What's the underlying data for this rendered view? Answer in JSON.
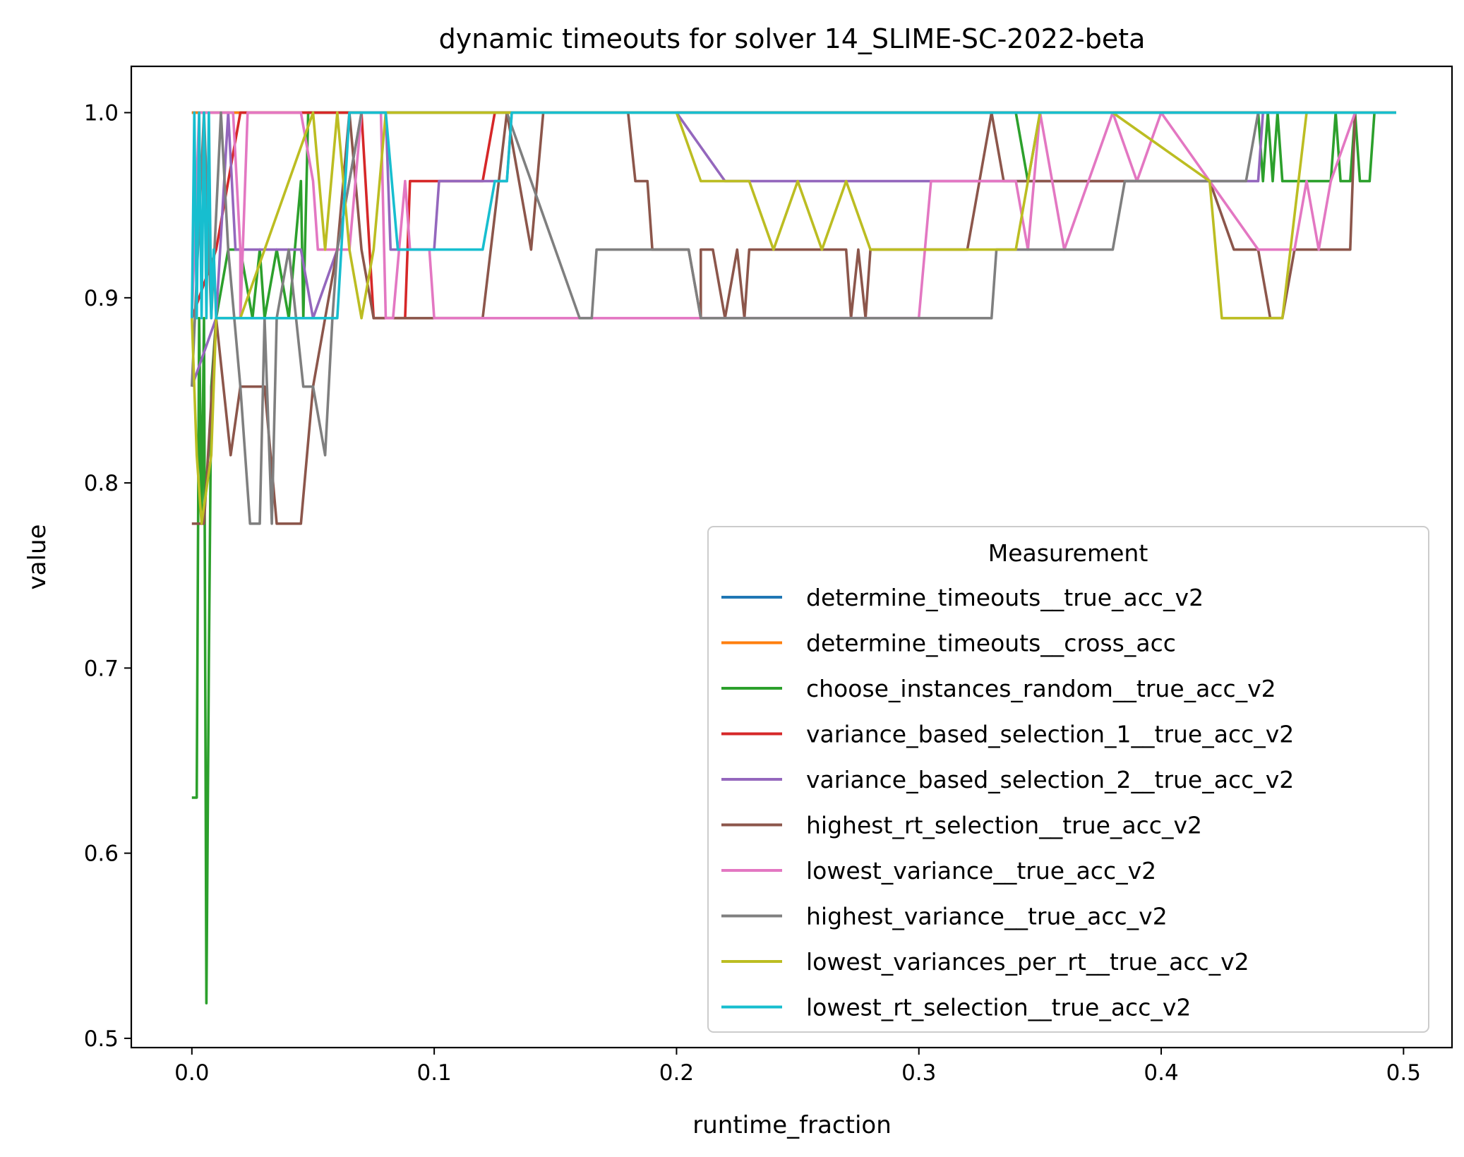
{
  "chart_data": {
    "type": "line",
    "title": "dynamic timeouts for solver 14_SLIME-SC-2022-beta",
    "xlabel": "runtime_fraction",
    "ylabel": "value",
    "xlim": [
      -0.025,
      0.52
    ],
    "ylim": [
      0.495,
      1.025
    ],
    "xticks": [
      "0.0",
      "0.1",
      "0.2",
      "0.3",
      "0.4",
      "0.5"
    ],
    "xtick_values": [
      0.0,
      0.1,
      0.2,
      0.3,
      0.4,
      0.5
    ],
    "yticks": [
      "0.5",
      "0.6",
      "0.7",
      "0.8",
      "0.9",
      "1.0"
    ],
    "ytick_values": [
      0.5,
      0.6,
      0.7,
      0.8,
      0.9,
      1.0
    ],
    "grid": false,
    "legend": {
      "title": "Measurement",
      "placement": "lower right"
    },
    "series": [
      {
        "name": "determine_timeouts__true_acc_v2",
        "color": "#1f77b4",
        "points": [
          [
            0.0,
            1.0
          ],
          [
            0.497,
            1.0
          ]
        ]
      },
      {
        "name": "determine_timeouts__cross_acc",
        "color": "#ff7f0e",
        "points": [
          [
            0.0,
            1.0
          ],
          [
            0.497,
            1.0
          ]
        ]
      },
      {
        "name": "choose_instances_random__true_acc_v2",
        "color": "#2ca02c",
        "points": [
          [
            0.0,
            0.63
          ],
          [
            0.002,
            0.63
          ],
          [
            0.003,
            0.889
          ],
          [
            0.004,
            0.778
          ],
          [
            0.005,
            0.889
          ],
          [
            0.006,
            0.519
          ],
          [
            0.007,
            0.704
          ],
          [
            0.008,
            0.852
          ],
          [
            0.01,
            0.889
          ],
          [
            0.015,
            0.926
          ],
          [
            0.02,
            0.926
          ],
          [
            0.025,
            0.889
          ],
          [
            0.028,
            0.926
          ],
          [
            0.03,
            0.889
          ],
          [
            0.035,
            0.926
          ],
          [
            0.04,
            0.889
          ],
          [
            0.045,
            0.963
          ],
          [
            0.046,
            0.889
          ],
          [
            0.048,
            1.0
          ],
          [
            0.05,
            1.0
          ],
          [
            0.3,
            1.0
          ],
          [
            0.34,
            1.0
          ],
          [
            0.345,
            0.963
          ],
          [
            0.35,
            1.0
          ],
          [
            0.44,
            1.0
          ],
          [
            0.442,
            0.963
          ],
          [
            0.444,
            1.0
          ],
          [
            0.446,
            0.963
          ],
          [
            0.448,
            1.0
          ],
          [
            0.45,
            0.963
          ],
          [
            0.47,
            0.963
          ],
          [
            0.472,
            1.0
          ],
          [
            0.474,
            0.963
          ],
          [
            0.478,
            0.963
          ],
          [
            0.48,
            1.0
          ],
          [
            0.482,
            0.963
          ],
          [
            0.486,
            0.963
          ],
          [
            0.488,
            1.0
          ],
          [
            0.497,
            1.0
          ]
        ]
      },
      {
        "name": "variance_based_selection_1__true_acc_v2",
        "color": "#d62728",
        "points": [
          [
            0.0,
            0.889
          ],
          [
            0.01,
            0.926
          ],
          [
            0.02,
            1.0
          ],
          [
            0.07,
            1.0
          ],
          [
            0.075,
            0.889
          ],
          [
            0.088,
            0.889
          ],
          [
            0.09,
            0.963
          ],
          [
            0.12,
            0.963
          ],
          [
            0.125,
            1.0
          ],
          [
            0.497,
            1.0
          ]
        ]
      },
      {
        "name": "variance_based_selection_2__true_acc_v2",
        "color": "#9467bd",
        "points": [
          [
            0.0,
            0.852
          ],
          [
            0.01,
            0.889
          ],
          [
            0.015,
            1.0
          ],
          [
            0.018,
            0.926
          ],
          [
            0.045,
            0.926
          ],
          [
            0.05,
            0.889
          ],
          [
            0.06,
            0.926
          ],
          [
            0.07,
            1.0
          ],
          [
            0.08,
            1.0
          ],
          [
            0.082,
            0.926
          ],
          [
            0.1,
            0.926
          ],
          [
            0.102,
            0.963
          ],
          [
            0.13,
            0.963
          ],
          [
            0.132,
            1.0
          ],
          [
            0.2,
            1.0
          ],
          [
            0.22,
            0.963
          ],
          [
            0.44,
            0.963
          ],
          [
            0.442,
            1.0
          ],
          [
            0.497,
            1.0
          ]
        ]
      },
      {
        "name": "highest_rt_selection__true_acc_v2",
        "color": "#8c564b",
        "points": [
          [
            0.0,
            0.778
          ],
          [
            0.005,
            0.778
          ],
          [
            0.01,
            0.889
          ],
          [
            0.016,
            0.815
          ],
          [
            0.02,
            0.852
          ],
          [
            0.03,
            0.852
          ],
          [
            0.035,
            0.778
          ],
          [
            0.045,
            0.778
          ],
          [
            0.05,
            0.852
          ],
          [
            0.055,
            0.889
          ],
          [
            0.06,
            0.926
          ],
          [
            0.065,
            1.0
          ],
          [
            0.07,
            0.926
          ],
          [
            0.075,
            0.889
          ],
          [
            0.12,
            0.889
          ],
          [
            0.13,
            1.0
          ],
          [
            0.14,
            0.926
          ],
          [
            0.145,
            1.0
          ],
          [
            0.18,
            1.0
          ],
          [
            0.183,
            0.963
          ],
          [
            0.188,
            0.963
          ],
          [
            0.19,
            0.926
          ],
          [
            0.205,
            0.926
          ],
          [
            0.21,
            0.889
          ],
          [
            0.21,
            0.926
          ],
          [
            0.215,
            0.926
          ],
          [
            0.22,
            0.889
          ],
          [
            0.225,
            0.926
          ],
          [
            0.228,
            0.889
          ],
          [
            0.23,
            0.926
          ],
          [
            0.27,
            0.926
          ],
          [
            0.272,
            0.889
          ],
          [
            0.275,
            0.926
          ],
          [
            0.278,
            0.889
          ],
          [
            0.28,
            0.926
          ],
          [
            0.32,
            0.926
          ],
          [
            0.33,
            1.0
          ],
          [
            0.335,
            0.963
          ],
          [
            0.34,
            0.963
          ],
          [
            0.42,
            0.963
          ],
          [
            0.43,
            0.926
          ],
          [
            0.44,
            0.926
          ],
          [
            0.445,
            0.889
          ],
          [
            0.45,
            0.889
          ],
          [
            0.455,
            0.926
          ],
          [
            0.478,
            0.926
          ],
          [
            0.48,
            1.0
          ],
          [
            0.497,
            1.0
          ]
        ]
      },
      {
        "name": "lowest_variance__true_acc_v2",
        "color": "#e377c2",
        "points": [
          [
            0.0,
            0.889
          ],
          [
            0.003,
            1.0
          ],
          [
            0.017,
            1.0
          ],
          [
            0.02,
            0.926
          ],
          [
            0.02,
            0.889
          ],
          [
            0.023,
            1.0
          ],
          [
            0.045,
            1.0
          ],
          [
            0.05,
            0.963
          ],
          [
            0.052,
            0.926
          ],
          [
            0.065,
            0.926
          ],
          [
            0.07,
            1.0
          ],
          [
            0.078,
            1.0
          ],
          [
            0.08,
            0.889
          ],
          [
            0.083,
            0.889
          ],
          [
            0.088,
            0.963
          ],
          [
            0.09,
            0.926
          ],
          [
            0.098,
            0.926
          ],
          [
            0.1,
            0.889
          ],
          [
            0.13,
            0.889
          ],
          [
            0.2,
            0.889
          ],
          [
            0.26,
            0.889
          ],
          [
            0.3,
            0.889
          ],
          [
            0.305,
            0.963
          ],
          [
            0.34,
            0.963
          ],
          [
            0.345,
            0.926
          ],
          [
            0.35,
            1.0
          ],
          [
            0.355,
            0.963
          ],
          [
            0.36,
            0.926
          ],
          [
            0.37,
            0.963
          ],
          [
            0.38,
            1.0
          ],
          [
            0.39,
            0.963
          ],
          [
            0.4,
            1.0
          ],
          [
            0.42,
            0.963
          ],
          [
            0.44,
            0.926
          ],
          [
            0.455,
            0.926
          ],
          [
            0.46,
            0.963
          ],
          [
            0.465,
            0.926
          ],
          [
            0.47,
            0.963
          ],
          [
            0.48,
            1.0
          ],
          [
            0.497,
            1.0
          ]
        ]
      },
      {
        "name": "highest_variance__true_acc_v2",
        "color": "#7f7f7f",
        "points": [
          [
            0.0,
            0.852
          ],
          [
            0.005,
            1.0
          ],
          [
            0.008,
            0.889
          ],
          [
            0.012,
            1.0
          ],
          [
            0.015,
            0.926
          ],
          [
            0.02,
            0.852
          ],
          [
            0.024,
            0.778
          ],
          [
            0.028,
            0.778
          ],
          [
            0.03,
            0.889
          ],
          [
            0.033,
            0.778
          ],
          [
            0.035,
            0.889
          ],
          [
            0.04,
            0.926
          ],
          [
            0.046,
            0.852
          ],
          [
            0.05,
            0.852
          ],
          [
            0.055,
            0.815
          ],
          [
            0.058,
            0.889
          ],
          [
            0.06,
            0.926
          ],
          [
            0.07,
            1.0
          ],
          [
            0.13,
            1.0
          ],
          [
            0.16,
            0.889
          ],
          [
            0.165,
            0.889
          ],
          [
            0.167,
            0.926
          ],
          [
            0.205,
            0.926
          ],
          [
            0.21,
            0.889
          ],
          [
            0.33,
            0.889
          ],
          [
            0.332,
            0.926
          ],
          [
            0.38,
            0.926
          ],
          [
            0.385,
            0.963
          ],
          [
            0.43,
            0.963
          ],
          [
            0.435,
            0.963
          ],
          [
            0.44,
            1.0
          ],
          [
            0.497,
            1.0
          ]
        ]
      },
      {
        "name": "lowest_variances_per_rt__true_acc_v2",
        "color": "#bcbd22",
        "points": [
          [
            0.0,
            0.889
          ],
          [
            0.002,
            0.815
          ],
          [
            0.004,
            0.778
          ],
          [
            0.008,
            0.815
          ],
          [
            0.01,
            0.889
          ],
          [
            0.02,
            0.889
          ],
          [
            0.05,
            1.0
          ],
          [
            0.055,
            0.926
          ],
          [
            0.06,
            1.0
          ],
          [
            0.065,
            0.926
          ],
          [
            0.07,
            0.889
          ],
          [
            0.075,
            0.926
          ],
          [
            0.08,
            1.0
          ],
          [
            0.13,
            1.0
          ],
          [
            0.2,
            1.0
          ],
          [
            0.21,
            0.963
          ],
          [
            0.23,
            0.963
          ],
          [
            0.24,
            0.926
          ],
          [
            0.25,
            0.963
          ],
          [
            0.26,
            0.926
          ],
          [
            0.27,
            0.963
          ],
          [
            0.28,
            0.926
          ],
          [
            0.34,
            0.926
          ],
          [
            0.35,
            1.0
          ],
          [
            0.38,
            1.0
          ],
          [
            0.42,
            0.963
          ],
          [
            0.425,
            0.889
          ],
          [
            0.45,
            0.889
          ],
          [
            0.46,
            1.0
          ],
          [
            0.497,
            1.0
          ]
        ]
      },
      {
        "name": "lowest_rt_selection__true_acc_v2",
        "color": "#17becf",
        "points": [
          [
            0.0,
            0.889
          ],
          [
            0.001,
            1.0
          ],
          [
            0.002,
            0.889
          ],
          [
            0.003,
            1.0
          ],
          [
            0.004,
            0.889
          ],
          [
            0.005,
            1.0
          ],
          [
            0.006,
            0.889
          ],
          [
            0.007,
            1.0
          ],
          [
            0.008,
            0.889
          ],
          [
            0.009,
            0.926
          ],
          [
            0.01,
            0.889
          ],
          [
            0.06,
            0.889
          ],
          [
            0.065,
            1.0
          ],
          [
            0.08,
            1.0
          ],
          [
            0.085,
            0.926
          ],
          [
            0.12,
            0.926
          ],
          [
            0.125,
            0.963
          ],
          [
            0.13,
            0.963
          ],
          [
            0.132,
            1.0
          ],
          [
            0.497,
            1.0
          ]
        ]
      }
    ]
  }
}
